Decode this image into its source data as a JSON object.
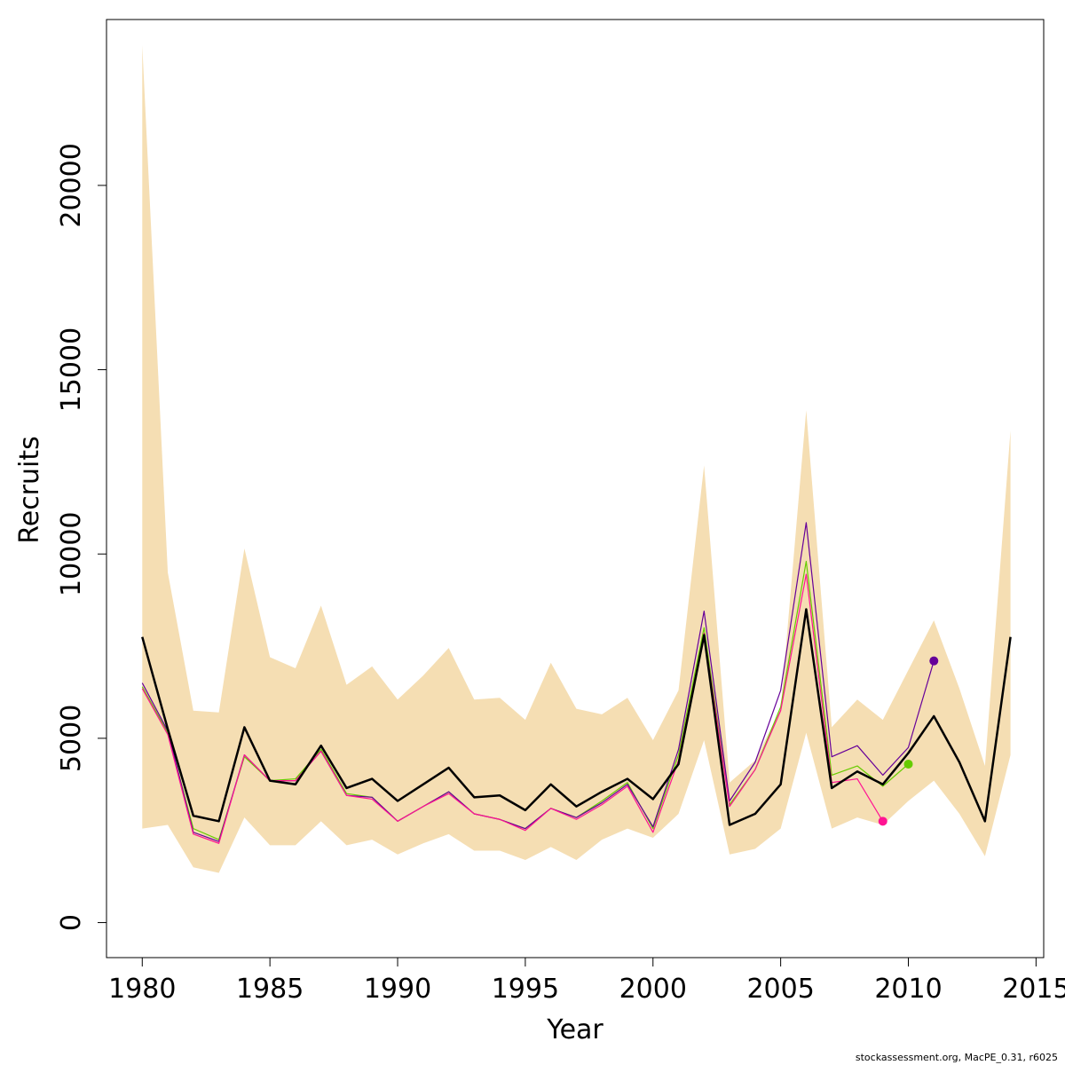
{
  "chart_data": {
    "type": "line",
    "xlabel": "Year",
    "ylabel": "Recruits",
    "xlim": [
      1978.6,
      2015.3
    ],
    "ylim": [
      -950,
      24500
    ],
    "xticks": [
      "1980",
      "1985",
      "1990",
      "1995",
      "2000",
      "2005",
      "2010",
      "2015"
    ],
    "yticks": [
      "0",
      "5000",
      "10000",
      "15000",
      "20000"
    ],
    "grid": false,
    "legend": "none",
    "colors": {
      "band": "#f5deb3",
      "main": "#000000",
      "green": "#66cc00",
      "purple": "#660099",
      "pink": "#ff1493"
    },
    "band": {
      "x": [
        1980,
        1981,
        1982,
        1983,
        1984,
        1985,
        1986,
        1987,
        1988,
        1989,
        1990,
        1991,
        1992,
        1993,
        1994,
        1995,
        1996,
        1997,
        1998,
        1999,
        2000,
        2001,
        2002,
        2003,
        2004,
        2005,
        2006,
        2007,
        2008,
        2009,
        2010,
        2011,
        2012,
        2013,
        2014
      ],
      "upper": [
        23800,
        9500,
        5750,
        5700,
        10150,
        7200,
        6900,
        8600,
        6450,
        6950,
        6050,
        6700,
        7450,
        6050,
        6100,
        5500,
        7050,
        5800,
        5650,
        6100,
        4950,
        6300,
        12400,
        3800,
        4400,
        5800,
        13900,
        5300,
        6050,
        5500,
        6850,
        8200,
        6350,
        4250,
        13350
      ],
      "lower": [
        2550,
        2650,
        1500,
        1350,
        2850,
        2100,
        2100,
        2750,
        2100,
        2250,
        1850,
        2150,
        2400,
        1950,
        1950,
        1700,
        2050,
        1700,
        2250,
        2550,
        2300,
        2950,
        4950,
        1850,
        2000,
        2550,
        5150,
        2550,
        2850,
        2650,
        3300,
        3850,
        2950,
        1800,
        4550
      ]
    },
    "series": [
      {
        "color_key": "main",
        "x": [
          1980,
          1981,
          1982,
          1983,
          1984,
          1985,
          1986,
          1987,
          1988,
          1989,
          1990,
          1991,
          1992,
          1993,
          1994,
          1995,
          1996,
          1997,
          1998,
          1999,
          2000,
          2001,
          2002,
          2003,
          2004,
          2005,
          2006,
          2007,
          2008,
          2009,
          2010,
          2011,
          2012,
          2013,
          2014
        ],
        "values": [
          7750,
          5250,
          2900,
          2750,
          5300,
          3850,
          3750,
          4800,
          3650,
          3900,
          3300,
          3750,
          4200,
          3400,
          3450,
          3050,
          3750,
          3150,
          3550,
          3900,
          3350,
          4300,
          7800,
          2650,
          2950,
          3750,
          8500,
          3650,
          4100,
          3750,
          4600,
          5600,
          4350,
          2750,
          7750
        ]
      },
      {
        "color_key": "green",
        "x": [
          1980,
          1981,
          1982,
          1983,
          1984,
          1985,
          1986,
          1987,
          1988,
          1989,
          1990,
          1991,
          1992,
          1993,
          1994,
          1995,
          1996,
          1997,
          1998,
          1999,
          2000,
          2001,
          2002,
          2003,
          2004,
          2005,
          2006,
          2007,
          2008,
          2009,
          2010
        ],
        "values": [
          6400,
          5150,
          2550,
          2250,
          4500,
          3850,
          3900,
          4700,
          3500,
          3400,
          2750,
          3150,
          3550,
          2950,
          2800,
          2550,
          3100,
          2850,
          3300,
          3800,
          2550,
          4550,
          8000,
          3200,
          4150,
          5850,
          9800,
          4000,
          4250,
          3700,
          4300
        ],
        "end_marker": true
      },
      {
        "color_key": "purple",
        "x": [
          1980,
          1981,
          1982,
          1983,
          1984,
          1985,
          1986,
          1987,
          1988,
          1989,
          1990,
          1991,
          1992,
          1993,
          1994,
          1995,
          1996,
          1997,
          1998,
          1999,
          2000,
          2001,
          2002,
          2003,
          2004,
          2005,
          2006,
          2007,
          2008,
          2009,
          2010,
          2011
        ],
        "values": [
          6500,
          5200,
          2450,
          2200,
          4550,
          3850,
          3850,
          4650,
          3450,
          3400,
          2750,
          3150,
          3550,
          2950,
          2800,
          2550,
          3100,
          2850,
          3250,
          3750,
          2600,
          4700,
          8450,
          3300,
          4350,
          6300,
          10850,
          4500,
          4800,
          4000,
          4750,
          7100
        ],
        "end_marker": true
      },
      {
        "color_key": "pink",
        "x": [
          1980,
          1981,
          1982,
          1983,
          1984,
          1985,
          1986,
          1987,
          1988,
          1989,
          1990,
          1991,
          1992,
          1993,
          1994,
          1995,
          1996,
          1997,
          1998,
          1999,
          2000,
          2001,
          2002,
          2003,
          2004,
          2005,
          2006,
          2007,
          2008,
          2009
        ],
        "values": [
          6350,
          5100,
          2400,
          2150,
          4550,
          3850,
          3850,
          4650,
          3450,
          3350,
          2750,
          3150,
          3500,
          2950,
          2800,
          2500,
          3100,
          2800,
          3200,
          3700,
          2450,
          4400,
          7850,
          3150,
          4150,
          5750,
          9450,
          3800,
          3900,
          2750
        ],
        "end_marker": true
      }
    ]
  },
  "credit": "stockassessment.org, MacPE_0.31, r6025"
}
